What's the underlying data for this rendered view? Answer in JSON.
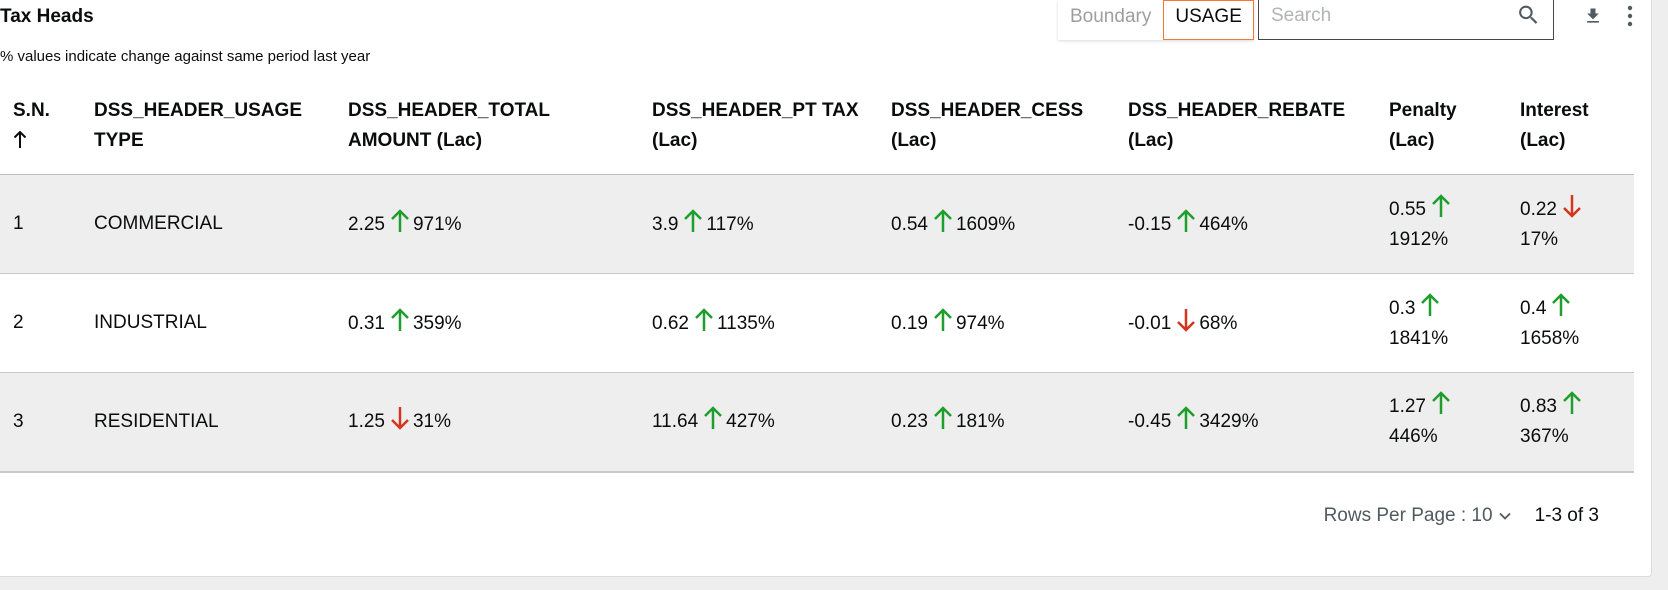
{
  "header": {
    "title": "Tax Heads",
    "subtitle": "% values indicate change against same period last year"
  },
  "toggle": {
    "boundary_label": "Boundary",
    "usage_label": "USAGE"
  },
  "search": {
    "placeholder": "Search",
    "value": ""
  },
  "icons": {
    "search": "search-icon",
    "download": "download-icon",
    "menu": "more-vert-icon",
    "sort": "arrow-up-icon",
    "up": "arrow-up-icon",
    "down": "arrow-down-icon"
  },
  "colors": {
    "up": "#1e9e2c",
    "down": "#d4351c",
    "active_border": "#f47738"
  },
  "table": {
    "headers": {
      "sn_line1": "S.N.",
      "usage_line1": "DSS_HEADER_USAGE",
      "usage_line2": "TYPE",
      "total_line1": "DSS_HEADER_TOTAL",
      "total_line2": "AMOUNT (Lac)",
      "pt_line1": "DSS_HEADER_PT TAX",
      "pt_line2": "(Lac)",
      "cess_line1": "DSS_HEADER_CESS",
      "cess_line2": "(Lac)",
      "rebate_line1": "DSS_HEADER_REBATE",
      "rebate_line2": "(Lac)",
      "penalty_line1": "Penalty",
      "penalty_line2": "(Lac)",
      "interest_line1": "Interest",
      "interest_line2": "(Lac)"
    },
    "rows": [
      {
        "sn": "1",
        "usage": "COMMERCIAL",
        "total": {
          "value": "2.25",
          "trend": "up",
          "pct": "971%"
        },
        "pt": {
          "value": "3.9",
          "trend": "up",
          "pct": "117%"
        },
        "cess": {
          "value": "0.54",
          "trend": "up",
          "pct": "1609%"
        },
        "rebate": {
          "value": "-0.15",
          "trend": "up",
          "pct": "464%"
        },
        "penalty": {
          "value": "0.55",
          "trend": "up",
          "pct": "1912%"
        },
        "interest": {
          "value": "0.22",
          "trend": "down",
          "pct": "17%"
        }
      },
      {
        "sn": "2",
        "usage": "INDUSTRIAL",
        "total": {
          "value": "0.31",
          "trend": "up",
          "pct": "359%"
        },
        "pt": {
          "value": "0.62",
          "trend": "up",
          "pct": "1135%"
        },
        "cess": {
          "value": "0.19",
          "trend": "up",
          "pct": "974%"
        },
        "rebate": {
          "value": "-0.01",
          "trend": "down",
          "pct": "68%"
        },
        "penalty": {
          "value": "0.3",
          "trend": "up",
          "pct": "1841%"
        },
        "interest": {
          "value": "0.4",
          "trend": "up",
          "pct": "1658%"
        }
      },
      {
        "sn": "3",
        "usage": "RESIDENTIAL",
        "total": {
          "value": "1.25",
          "trend": "down",
          "pct": "31%"
        },
        "pt": {
          "value": "11.64",
          "trend": "up",
          "pct": "427%"
        },
        "cess": {
          "value": "0.23",
          "trend": "up",
          "pct": "181%"
        },
        "rebate": {
          "value": "-0.45",
          "trend": "up",
          "pct": "3429%"
        },
        "penalty": {
          "value": "1.27",
          "trend": "up",
          "pct": "446%"
        },
        "interest": {
          "value": "0.83",
          "trend": "up",
          "pct": "367%"
        }
      }
    ]
  },
  "footer": {
    "rows_per_page_label": "Rows Per Page : 10",
    "page_info": "1-3 of 3"
  }
}
